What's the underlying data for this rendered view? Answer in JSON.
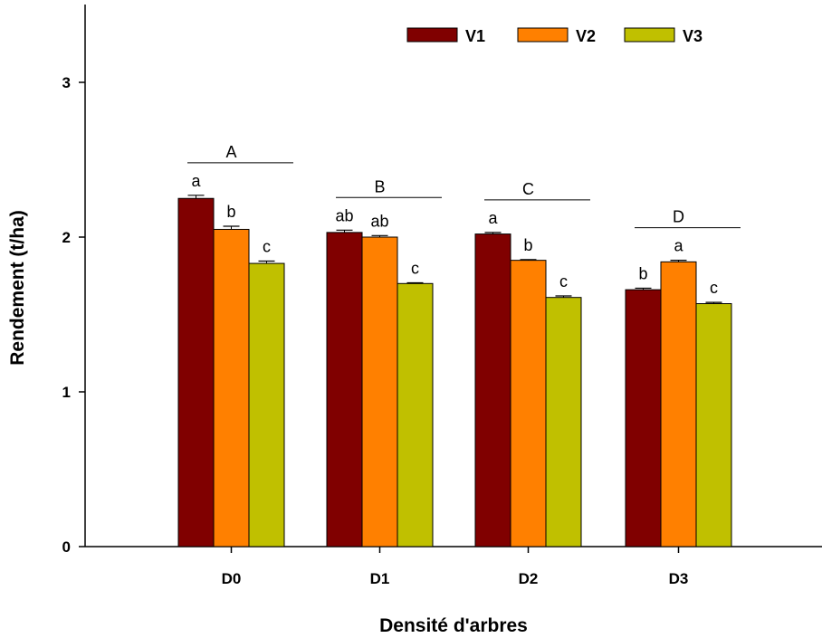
{
  "chart_data": {
    "type": "bar",
    "xlabel": "Densité d'arbres",
    "ylabel": "Rendement (t/ha)",
    "ylim": [
      0,
      3.5
    ],
    "yticks": [
      0,
      1,
      2,
      3
    ],
    "grid": false,
    "legend_position": "top-right",
    "categories": [
      "D0",
      "D1",
      "D2",
      "D3"
    ],
    "series": [
      {
        "name": "V1",
        "color": "#800000",
        "values": [
          2.25,
          2.03,
          2.02,
          1.66
        ],
        "errors": [
          0.02,
          0.015,
          0.01,
          0.01
        ],
        "letters": [
          "a",
          "ab",
          "a",
          "b"
        ]
      },
      {
        "name": "V2",
        "color": "#ff8000",
        "values": [
          2.05,
          2.0,
          1.85,
          1.84
        ],
        "errors": [
          0.02,
          0.01,
          0.005,
          0.01
        ],
        "letters": [
          "b",
          "ab",
          "b",
          "a"
        ]
      },
      {
        "name": "V3",
        "color": "#c0c000",
        "values": [
          1.83,
          1.7,
          1.61,
          1.57
        ],
        "errors": [
          0.015,
          0.005,
          0.01,
          0.008
        ],
        "letters": [
          "c",
          "c",
          "c",
          "c"
        ]
      }
    ],
    "group_letters": [
      "A",
      "B",
      "C",
      "D"
    ]
  }
}
